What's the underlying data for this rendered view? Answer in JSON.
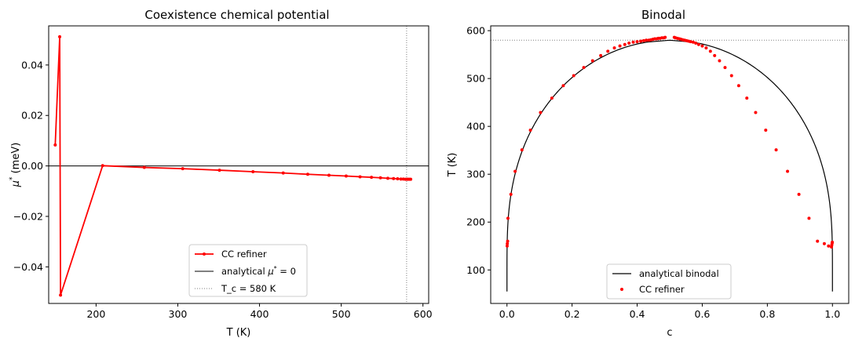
{
  "chart_data": [
    {
      "type": "line",
      "title": "Coexistence chemical potential",
      "xlabel": "T  (K)",
      "ylabel_main": "μ",
      "ylabel_sup": "*",
      "ylabel_unit": "  (meV)",
      "xlim": [
        142,
        607
      ],
      "ylim": [
        -0.0545,
        0.0555
      ],
      "xticks": [
        200,
        300,
        400,
        500,
        600
      ],
      "xtick_labels": [
        "200",
        "300",
        "400",
        "500",
        "600"
      ],
      "yticks": [
        -0.04,
        -0.02,
        0.0,
        0.02,
        0.04
      ],
      "ytick_labels": [
        "−0.04",
        "−0.02",
        "0.00",
        "0.02",
        "0.04"
      ],
      "grid": false,
      "legend_position": "lower center",
      "series": [
        {
          "name": "CC refiner",
          "color": "#ff0000",
          "marker": "dot",
          "x": [
            150,
            155.5,
            156.5,
            208,
            259,
            306,
            351,
            392,
            429,
            459,
            485,
            506,
            523,
            537,
            548,
            557,
            564,
            569,
            573,
            576,
            578.5,
            580.5,
            582,
            583.5,
            585
          ],
          "y": [
            0.0083,
            0.0512,
            -0.0512,
            0.0001,
            -0.0006,
            -0.0011,
            -0.0017,
            -0.0023,
            -0.0028,
            -0.0033,
            -0.0037,
            -0.004,
            -0.0043,
            -0.0045,
            -0.0047,
            -0.0049,
            -0.005,
            -0.0051,
            -0.0052,
            -0.0052,
            -0.0053,
            -0.0053,
            -0.0053,
            -0.0053,
            -0.0053
          ]
        },
        {
          "name_prefix": "analytical ",
          "name_math": "μ",
          "name_sup": "*",
          "name_suffix": " = 0",
          "color": "#000000",
          "style": "solid",
          "y_constant": 0
        },
        {
          "name": "T_c = 580 K",
          "color": "#808080",
          "style": "dotted",
          "x_constant": 580
        }
      ]
    },
    {
      "type": "line",
      "title": "Binodal",
      "xlabel": "c",
      "ylabel": "T  (K)",
      "xlim": [
        -0.05,
        1.05
      ],
      "ylim": [
        30,
        610
      ],
      "xticks": [
        0.0,
        0.2,
        0.4,
        0.6,
        0.8,
        1.0
      ],
      "xtick_labels": [
        "0.0",
        "0.2",
        "0.4",
        "0.6",
        "0.8",
        "1.0"
      ],
      "yticks": [
        100,
        200,
        300,
        400,
        500,
        600
      ],
      "ytick_labels": [
        "100",
        "200",
        "300",
        "400",
        "500",
        "600"
      ],
      "grid": false,
      "legend_position": "lower center",
      "tc_line": {
        "y_constant": 580,
        "color": "#808080",
        "style": "dotted"
      },
      "series": [
        {
          "name": "analytical binodal",
          "color": "#000000",
          "style": "solid",
          "T_min": 55,
          "T_max": 580
        },
        {
          "name": "CC refiner",
          "color": "#ff0000",
          "marker": "dot",
          "x": [
            0.0005,
            0.001,
            0.002,
            0.003,
            0.012,
            0.025,
            0.046,
            0.072,
            0.103,
            0.138,
            0.173,
            0.205,
            0.236,
            0.263,
            0.288,
            0.31,
            0.33,
            0.347,
            0.362,
            0.375,
            0.388,
            0.4,
            0.411,
            0.42,
            0.428,
            0.436,
            0.442,
            0.448,
            0.454,
            0.46,
            0.465,
            0.47,
            0.476,
            0.482,
            0.486,
            0.514,
            0.518,
            0.524,
            0.53,
            0.535,
            0.54,
            0.546,
            0.552,
            0.558,
            0.564,
            0.572,
            0.58,
            0.589,
            0.6,
            0.612,
            0.625,
            0.638,
            0.653,
            0.67,
            0.69,
            0.712,
            0.737,
            0.764,
            0.795,
            0.827,
            0.862,
            0.897,
            0.928,
            0.954,
            0.975,
            0.988,
            0.997,
            0.998,
            0.999,
            0.9995
          ],
          "y": [
            150,
            155,
            160,
            208,
            258,
            306,
            351,
            392,
            429,
            459,
            485,
            506,
            523,
            537,
            548,
            557,
            564,
            568,
            571,
            574,
            576,
            577,
            578,
            579,
            580,
            580,
            581,
            582,
            583,
            583,
            584,
            584,
            585,
            585,
            586,
            586,
            585,
            584,
            583,
            582,
            581,
            580,
            579,
            578,
            577,
            576,
            574,
            571,
            568,
            564,
            557,
            548,
            537,
            523,
            506,
            485,
            459,
            429,
            392,
            351,
            306,
            258,
            208,
            160,
            155,
            150,
            148,
            152,
            156,
            158
          ]
        }
      ]
    }
  ]
}
